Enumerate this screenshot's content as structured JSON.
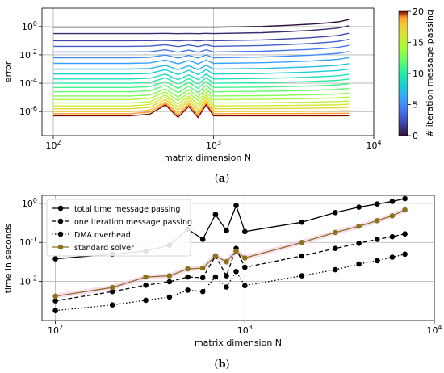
{
  "chart_data": [
    {
      "type": "line",
      "panel_label": "a",
      "xlabel": "matrix dimension N",
      "ylabel": "error",
      "x_scale": "log",
      "y_scale": "log",
      "xlim": [
        85,
        10000
      ],
      "ylim": [
        2e-08,
        20
      ],
      "x_ticks": [
        {
          "v": 100,
          "label": "10^2"
        },
        {
          "v": 1000,
          "label": "10^3"
        },
        {
          "v": 10000,
          "label": "10^4"
        }
      ],
      "y_ticks": [
        {
          "v": 1,
          "label": "10^0"
        },
        {
          "v": 0.01,
          "label": "10^-2"
        },
        {
          "v": 0.0001,
          "label": "10^-4"
        },
        {
          "v": 1e-06,
          "label": "10^-6"
        }
      ],
      "grid": true,
      "x": [
        100,
        200,
        300,
        400,
        500,
        600,
        700,
        800,
        900,
        1000,
        2000,
        3000,
        4000,
        5000,
        6000,
        7000
      ],
      "lines_note_color_by_iteration": true,
      "series_shape": [
        0,
        0,
        0,
        0.05,
        0.35,
        -0.05,
        0.3,
        -0.05,
        0.35,
        0,
        0,
        0,
        0,
        0,
        0,
        0
      ],
      "series_right_rise": [
        0,
        0,
        0,
        0,
        0,
        0,
        0,
        0,
        0,
        0,
        0.05,
        0.12,
        0.18,
        0.25,
        0.32,
        0.45
      ],
      "series_base_log10": [
        0,
        -0.5,
        -1,
        -1.4,
        -1.8,
        -2.2,
        -2.6,
        -3,
        -3.35,
        -3.7,
        -4,
        -4.3,
        -4.6,
        -4.9,
        -5.15,
        -5.4,
        -5.6,
        -5.8,
        -6,
        -6.15,
        -6.3
      ],
      "colorbar": {
        "label": "# iteration message passing",
        "ticks": [
          0,
          5,
          10,
          15,
          20
        ],
        "range": [
          0,
          20
        ],
        "colormap": "turbo"
      }
    },
    {
      "type": "line",
      "panel_label": "b",
      "xlabel": "matrix dimension N",
      "ylabel": "time in seconds",
      "x_scale": "log",
      "y_scale": "log",
      "xlim": [
        85,
        10000
      ],
      "ylim": [
        0.001,
        1.6
      ],
      "x_ticks": [
        {
          "v": 100,
          "label": "10^2"
        },
        {
          "v": 1000,
          "label": "10^3"
        },
        {
          "v": 10000,
          "label": "10^4"
        }
      ],
      "y_ticks": [
        {
          "v": 1,
          "label": "10^0"
        },
        {
          "v": 0.1,
          "label": "10^-1"
        },
        {
          "v": 0.01,
          "label": "10^-2"
        }
      ],
      "grid": true,
      "legend_placement": "top-left",
      "series": [
        {
          "name": "total time message passing",
          "style": "solid",
          "color": "#000000",
          "x": [
            100,
            200,
            300,
            400,
            500,
            600,
            700,
            800,
            900,
            1000,
            2000,
            3000,
            4000,
            5000,
            6000,
            7000
          ],
          "y": [
            0.038,
            0.05,
            0.06,
            0.085,
            0.22,
            0.12,
            0.52,
            0.2,
            0.88,
            0.19,
            0.33,
            0.58,
            0.8,
            0.96,
            1.12,
            1.32
          ]
        },
        {
          "name": "one iteration message passing",
          "style": "dashed",
          "color": "#000000",
          "x": [
            100,
            200,
            300,
            400,
            500,
            600,
            700,
            800,
            900,
            1000,
            2000,
            3000,
            4000,
            5000,
            6000,
            7000
          ],
          "y": [
            0.0032,
            0.0055,
            0.008,
            0.0098,
            0.013,
            0.0125,
            0.045,
            0.014,
            0.07,
            0.023,
            0.045,
            0.07,
            0.095,
            0.12,
            0.14,
            0.165
          ]
        },
        {
          "name": "DMA overhead",
          "style": "dotted",
          "color": "#000000",
          "x": [
            100,
            200,
            300,
            400,
            500,
            600,
            700,
            800,
            900,
            1000,
            2000,
            3000,
            4000,
            5000,
            6000,
            7000
          ],
          "y": [
            0.0018,
            0.0025,
            0.0033,
            0.004,
            0.006,
            0.0055,
            0.013,
            0.0072,
            0.018,
            0.0078,
            0.014,
            0.02,
            0.028,
            0.034,
            0.042,
            0.05
          ]
        },
        {
          "name": "standard solver",
          "style": "solid",
          "color": "#8B7320",
          "x": [
            100,
            200,
            300,
            400,
            500,
            600,
            700,
            800,
            900,
            1000,
            2000,
            3000,
            4000,
            5000,
            6000,
            7000
          ],
          "y": [
            0.0042,
            0.007,
            0.013,
            0.014,
            0.021,
            0.022,
            0.045,
            0.032,
            0.06,
            0.04,
            0.1,
            0.18,
            0.26,
            0.36,
            0.48,
            0.68
          ]
        }
      ]
    }
  ],
  "captions": {
    "a": "(a)",
    "b": "(b)"
  }
}
